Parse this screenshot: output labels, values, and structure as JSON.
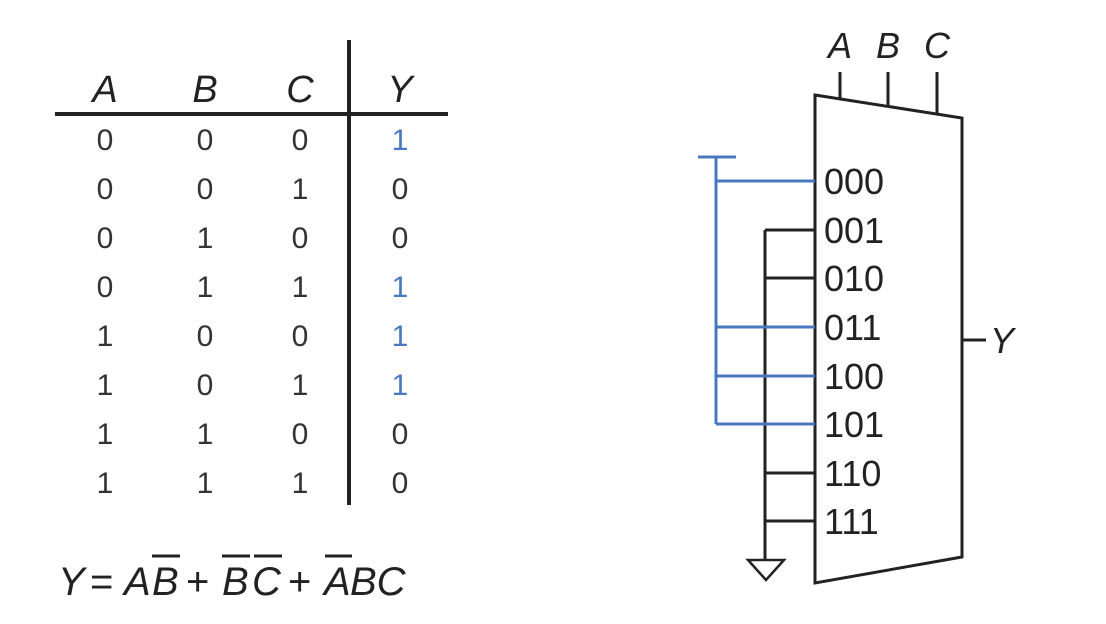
{
  "truth_table": {
    "headers": [
      "A",
      "B",
      "C",
      "Y"
    ],
    "rows": [
      [
        "0",
        "0",
        "0",
        "1"
      ],
      [
        "0",
        "0",
        "1",
        "0"
      ],
      [
        "0",
        "1",
        "0",
        "0"
      ],
      [
        "0",
        "1",
        "1",
        "1"
      ],
      [
        "1",
        "0",
        "0",
        "1"
      ],
      [
        "1",
        "0",
        "1",
        "1"
      ],
      [
        "1",
        "1",
        "0",
        "0"
      ],
      [
        "1",
        "1",
        "1",
        "0"
      ]
    ]
  },
  "equation": {
    "lhs": "Y",
    "eq": "=",
    "t1": [
      "A",
      "B"
    ],
    "plus": "+",
    "t2": [
      "B",
      "C"
    ],
    "t3": [
      "A",
      "BC"
    ]
  },
  "mux": {
    "selects": [
      "A",
      "B",
      "C"
    ],
    "inputs": [
      "000",
      "001",
      "010",
      "011",
      "100",
      "101",
      "110",
      "111"
    ],
    "output": "Y"
  },
  "colors": {
    "highlight": "#4a78c0",
    "ink": "#222222"
  }
}
